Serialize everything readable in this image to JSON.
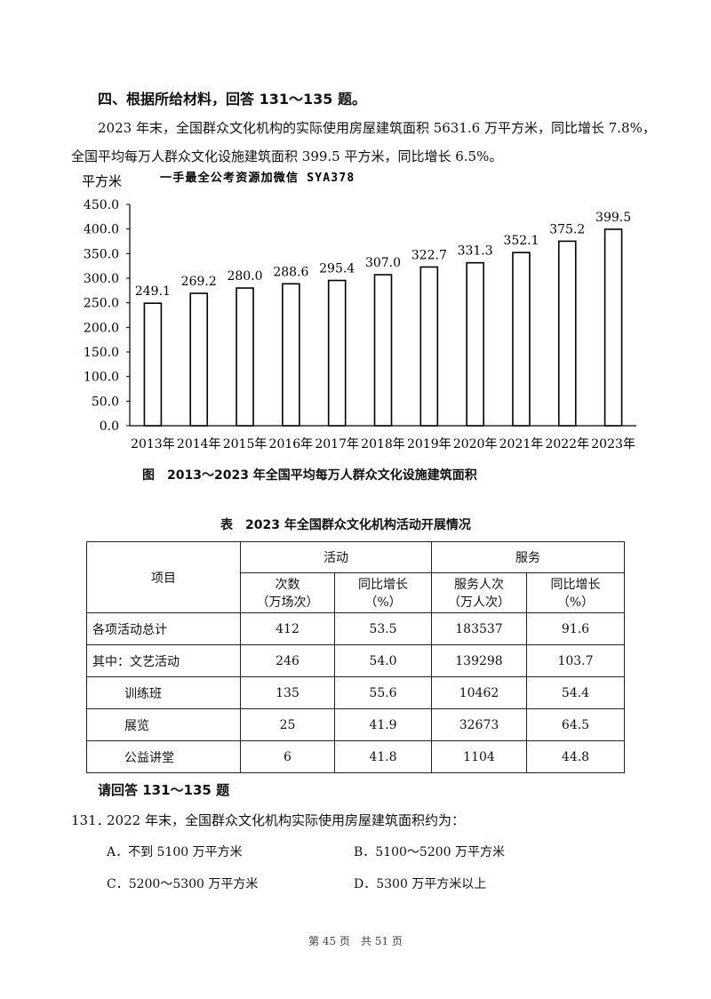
{
  "section_heading": "四、根据所给材料，回答 131～135 题。",
  "paragraph": {
    "line1": "2023 年末，全国群众文化机构的实际使用房屋建筑面积 5631.6 万平方米，同比增长 7.8%，",
    "line2": "全国平均每万人群众文化设施建筑面积 399.5 平方米，同比增长 6.5%。"
  },
  "chart_data": {
    "type": "bar",
    "title": "图　2013～2023 年全国平均每万人群众文化设施建筑面积",
    "ylabel": "平方米",
    "watermark": "一手最全公考资源加微信 SYA378",
    "categories": [
      "2013年",
      "2014年",
      "2015年",
      "2016年",
      "2017年",
      "2018年",
      "2019年",
      "2020年",
      "2021年",
      "2022年",
      "2023年"
    ],
    "values": [
      249.1,
      269.2,
      280.0,
      288.6,
      295.4,
      307.0,
      322.7,
      331.3,
      352.1,
      375.2,
      399.5
    ],
    "value_labels": [
      "249.1",
      "269.2",
      "280.0",
      "288.6",
      "295.4",
      "307.0",
      "322.7",
      "331.3",
      "352.1",
      "375.2",
      "399.5"
    ],
    "yticks": [
      "0.0",
      "50.0",
      "100.0",
      "150.0",
      "200.0",
      "250.0",
      "300.0",
      "350.0",
      "400.0",
      "450.0"
    ],
    "ylim": [
      0,
      450
    ],
    "grid": false,
    "bar_fill": "#ffffff",
    "bar_stroke": "#000000"
  },
  "table": {
    "title": "表　2023 年全国群众文化机构活动开展情况",
    "header_item": "项目",
    "header_group_activity": "活动",
    "header_group_service": "服务",
    "sub_count": [
      "次数",
      "（万场次）"
    ],
    "sub_growth1": [
      "同比增长",
      "（%）"
    ],
    "sub_people": [
      "服务人次",
      "（万人次）"
    ],
    "sub_growth2": [
      "同比增长",
      "（%）"
    ],
    "rows": [
      {
        "item": "各项活动总计",
        "count": "412",
        "growth1": "53.5",
        "people": "183537",
        "growth2": "91.6"
      },
      {
        "item": "其中：文艺活动",
        "count": "246",
        "growth1": "54.0",
        "people": "139298",
        "growth2": "103.7"
      },
      {
        "item": "训练班",
        "count": "135",
        "growth1": "55.6",
        "people": "10462",
        "growth2": "54.4"
      },
      {
        "item": "展览",
        "count": "25",
        "growth1": "41.9",
        "people": "32673",
        "growth2": "64.5"
      },
      {
        "item": "公益讲堂",
        "count": "6",
        "growth1": "41.8",
        "people": "1104",
        "growth2": "44.8"
      }
    ]
  },
  "instruction": "请回答 131～135 题",
  "question": {
    "number": "131．",
    "text": "2022 年末，全国群众文化机构实际使用房屋建筑面积约为：",
    "options": {
      "A": "A．不到 5100 万平方米",
      "B": "B．5100～5200 万平方米",
      "C": "C．5200～5300 万平方米",
      "D": "D．5300 万平方米以上"
    }
  },
  "footer": "第 45 页　共 51 页"
}
